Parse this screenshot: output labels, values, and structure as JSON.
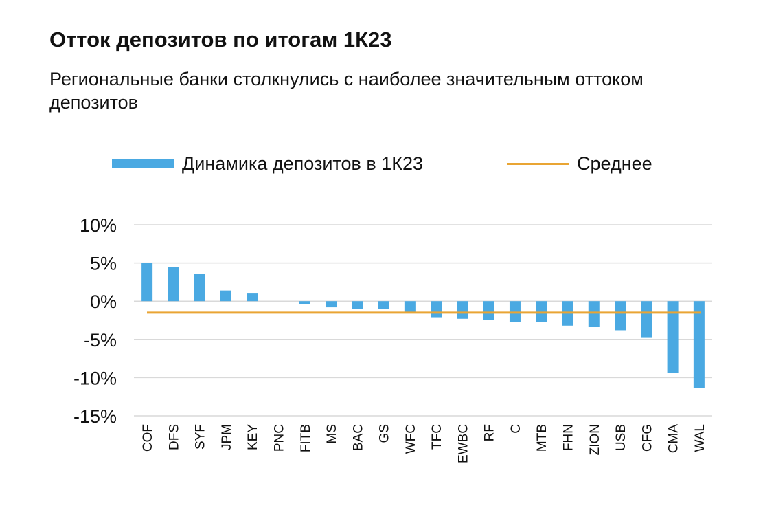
{
  "chart_data": {
    "type": "bar",
    "title": "Отток депозитов по итогам 1К23",
    "subtitle": "Региональные банки столкнулись с наиболее значительным оттоком депозитов",
    "categories": [
      "COF",
      "DFS",
      "SYF",
      "JPM",
      "KEY",
      "PNC",
      "FITB",
      "MS",
      "BAC",
      "GS",
      "WFC",
      "TFC",
      "EWBC",
      "RF",
      "C",
      "MTB",
      "FHN",
      "ZION",
      "USB",
      "CFG",
      "CMA",
      "WAL"
    ],
    "series": [
      {
        "name": "Динамика депозитов в 1К23",
        "type": "bar",
        "color": "#4aa9e2",
        "values": [
          5.0,
          4.5,
          3.6,
          1.4,
          1.0,
          0.0,
          -0.4,
          -0.8,
          -1.0,
          -1.0,
          -1.4,
          -2.1,
          -2.3,
          -2.5,
          -2.7,
          -2.7,
          -3.2,
          -3.4,
          -3.8,
          -4.8,
          -9.4,
          -11.4
        ]
      },
      {
        "name": "Среднее",
        "type": "line",
        "color": "#e9a534",
        "value": -1.5
      }
    ],
    "ylim": [
      -15,
      10
    ],
    "yticks": [
      10,
      5,
      0,
      -5,
      -10,
      -15
    ],
    "ytick_labels": [
      "10%",
      "5%",
      "0%",
      "-5%",
      "-10%",
      "-15%"
    ],
    "xlabel": "",
    "ylabel": "",
    "grid": true,
    "legend_position": "top"
  }
}
